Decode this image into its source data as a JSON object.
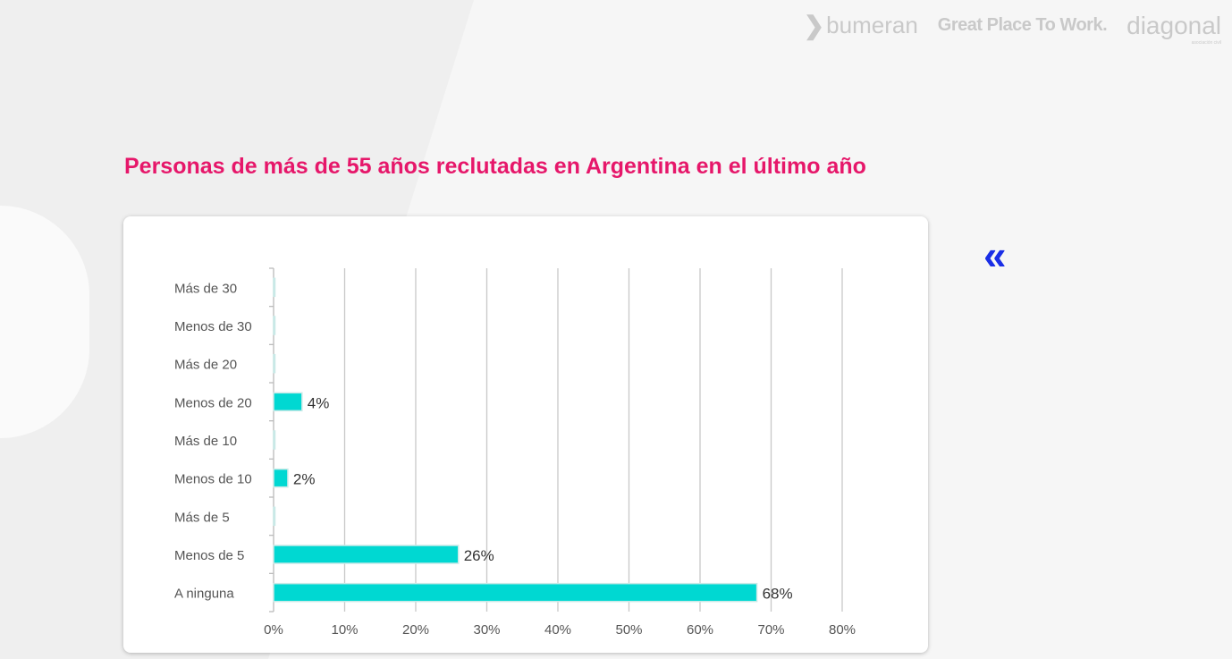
{
  "logos": {
    "bumeran": "bumeran",
    "gptw": "Great Place To Work.",
    "diagonal": "diagonal",
    "diagonal_sub": "asociación civil"
  },
  "title": "Personas de más de 55 años reclutadas en Argentina en el último año",
  "nav": {
    "back_icon": "double-chevron-left-icon",
    "back_glyph": "«"
  },
  "chart_data": {
    "type": "bar",
    "orientation": "horizontal",
    "categories": [
      "Más de 30",
      "Menos de 30",
      "Más de 20",
      "Menos de 20",
      "Más de 10",
      "Menos de 10",
      "Más de 5",
      "Menos de 5",
      "A ninguna"
    ],
    "values": [
      0,
      0,
      0,
      4,
      0,
      2,
      0,
      26,
      68
    ],
    "data_labels": [
      "",
      "",
      "",
      "4%",
      "",
      "2%",
      "",
      "26%",
      "68%"
    ],
    "xlim": [
      0,
      80
    ],
    "xticks": [
      "0%",
      "10%",
      "20%",
      "30%",
      "40%",
      "50%",
      "60%",
      "70%",
      "80%"
    ],
    "grid": true,
    "bar_color": "#00d8d2",
    "title": "",
    "xlabel": "",
    "ylabel": ""
  },
  "colors": {
    "title": "#e6176a",
    "accent": "#1a2ee6"
  }
}
